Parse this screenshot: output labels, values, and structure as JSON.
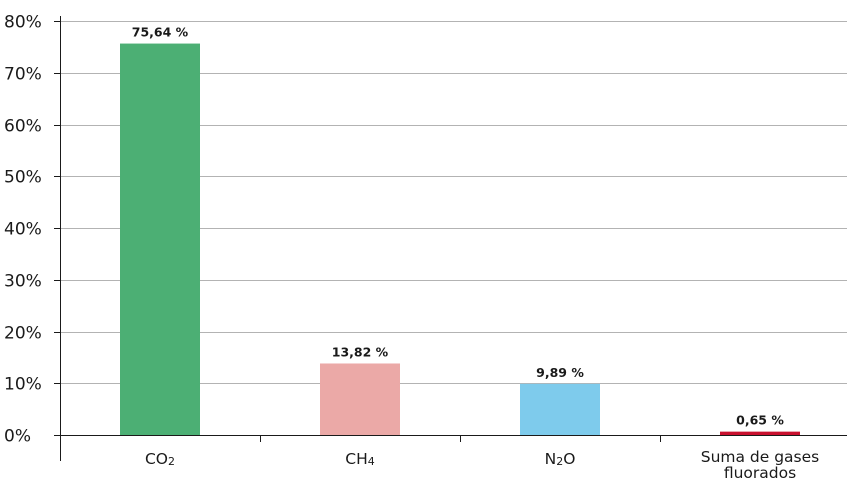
{
  "chart_data": {
    "type": "bar",
    "categories": [
      {
        "main": "CO",
        "sub": "2"
      },
      {
        "main": "CH",
        "sub": "4"
      },
      {
        "main": "N",
        "sub": "2",
        "tail": "O"
      },
      {
        "lines": [
          "Suma de gases",
          "fluorados"
        ]
      }
    ],
    "values": [
      75.64,
      13.82,
      9.89,
      0.65
    ],
    "data_labels": [
      "75,64 %",
      "13,82 %",
      "9,89 %",
      "0,65 %"
    ],
    "bar_colors": [
      "#4caf74",
      "#eba9a7",
      "#7ecbec",
      "#c8102e"
    ],
    "ylim": [
      0,
      80
    ],
    "yticks": [
      0,
      10,
      20,
      30,
      40,
      50,
      60,
      70,
      80
    ],
    "ytick_labels": [
      "0%",
      "10%",
      "20%",
      "30%",
      "40%",
      "50%",
      "60%",
      "70%",
      "80%"
    ],
    "grid": true,
    "title": "",
    "xlabel": "",
    "ylabel": ""
  }
}
